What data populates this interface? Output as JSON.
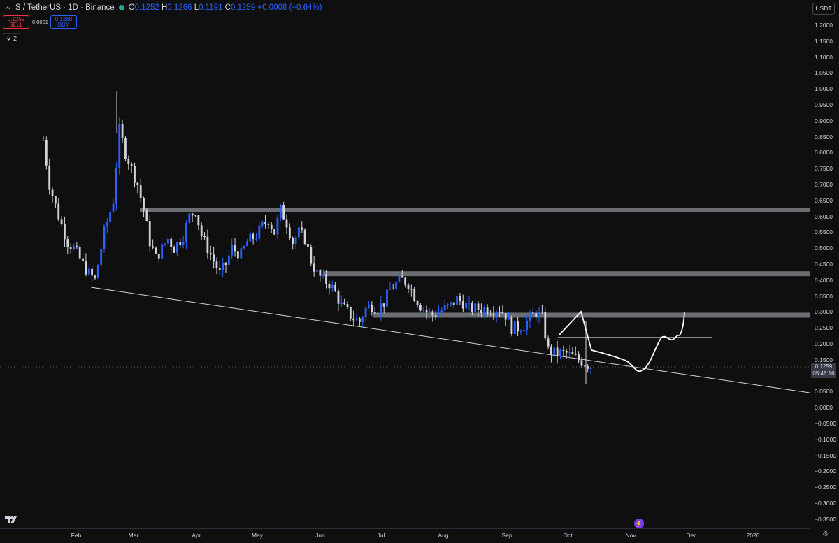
{
  "legend": {
    "symbol": "S / TetherUS · 1D · Binance",
    "collapse_icon": "chevron-up-icon",
    "o_key": "O",
    "o_val": "0.1252",
    "h_key": "H",
    "h_val": "0.1266",
    "l_key": "L",
    "l_val": "0.1191",
    "c_key": "C",
    "c_val": "0.1259",
    "change": "+0.0008 (+0.64%)"
  },
  "trade": {
    "sell_price": "0.1259",
    "sell_label": "SELL",
    "spread": "0.0001",
    "buy_price": "0.1260",
    "buy_label": "BUY"
  },
  "indicators": {
    "count": "2",
    "icon": "chevron-down-icon"
  },
  "currency": "USDT",
  "current_price": "0.1259",
  "countdown": "05:46:16",
  "colors": {
    "up": "#2962ff",
    "down": "#d1d4dc",
    "bg": "#0f0f0f",
    "sell": "#f23645",
    "buy": "#2962ff"
  },
  "chart_data": {
    "type": "candlestick",
    "price_ticks": [
      "1.2000",
      "1.1500",
      "1.1000",
      "1.0500",
      "1.0000",
      "0.9500",
      "0.9000",
      "0.8500",
      "0.8000",
      "0.7500",
      "0.7000",
      "0.6500",
      "0.6000",
      "0.5500",
      "0.5000",
      "0.4500",
      "0.4000",
      "0.3500",
      "0.3000",
      "0.2500",
      "0.2000",
      "0.1500",
      "0.0500",
      "0.0000",
      "−0.0500",
      "−0.1000",
      "−0.1500",
      "−0.2000",
      "−0.2500",
      "−0.3000",
      "−0.3500"
    ],
    "time_labels": [
      "Feb",
      "Mar",
      "Apr",
      "May",
      "Jun",
      "Jul",
      "Aug",
      "Sep",
      "Oct",
      "Nov",
      "Dec",
      "2026"
    ],
    "ylim": [
      -0.38,
      1.21
    ],
    "close_path": [
      [
        0,
        0.84
      ],
      [
        2,
        0.7
      ],
      [
        5,
        0.6
      ],
      [
        8,
        0.52
      ],
      [
        10,
        0.5
      ],
      [
        13,
        0.45
      ],
      [
        15,
        0.42
      ],
      [
        17,
        0.4
      ],
      [
        20,
        0.55
      ],
      [
        23,
        0.65
      ],
      [
        25,
        0.87
      ],
      [
        27,
        0.8
      ],
      [
        29,
        0.75
      ],
      [
        31,
        0.7
      ],
      [
        33,
        0.62
      ],
      [
        35,
        0.52
      ],
      [
        37,
        0.47
      ],
      [
        39,
        0.5
      ],
      [
        41,
        0.53
      ],
      [
        43,
        0.5
      ],
      [
        46,
        0.54
      ],
      [
        48,
        0.6
      ],
      [
        50,
        0.62
      ],
      [
        52,
        0.54
      ],
      [
        54,
        0.5
      ],
      [
        56,
        0.46
      ],
      [
        58,
        0.42
      ],
      [
        60,
        0.45
      ],
      [
        62,
        0.5
      ],
      [
        65,
        0.48
      ],
      [
        67,
        0.52
      ],
      [
        70,
        0.54
      ],
      [
        72,
        0.57
      ],
      [
        74,
        0.59
      ],
      [
        76,
        0.55
      ],
      [
        78,
        0.62
      ],
      [
        80,
        0.58
      ],
      [
        82,
        0.52
      ],
      [
        84,
        0.55
      ],
      [
        86,
        0.53
      ],
      [
        88,
        0.46
      ],
      [
        90,
        0.42
      ],
      [
        92,
        0.4
      ],
      [
        94,
        0.39
      ],
      [
        96,
        0.36
      ],
      [
        98,
        0.32
      ],
      [
        100,
        0.3
      ],
      [
        102,
        0.28
      ],
      [
        104,
        0.27
      ],
      [
        106,
        0.31
      ],
      [
        108,
        0.32
      ],
      [
        110,
        0.31
      ],
      [
        112,
        0.33
      ],
      [
        114,
        0.37
      ],
      [
        116,
        0.39
      ],
      [
        118,
        0.4
      ],
      [
        120,
        0.39
      ],
      [
        122,
        0.35
      ],
      [
        124,
        0.32
      ],
      [
        126,
        0.3
      ],
      [
        128,
        0.29
      ],
      [
        130,
        0.3
      ],
      [
        132,
        0.31
      ],
      [
        134,
        0.32
      ],
      [
        136,
        0.34
      ],
      [
        138,
        0.33
      ],
      [
        140,
        0.31
      ],
      [
        142,
        0.31
      ],
      [
        144,
        0.31
      ],
      [
        146,
        0.31
      ],
      [
        148,
        0.31
      ],
      [
        150,
        0.31
      ],
      [
        152,
        0.29
      ],
      [
        154,
        0.25
      ],
      [
        156,
        0.25
      ],
      [
        158,
        0.26
      ],
      [
        160,
        0.28
      ],
      [
        162,
        0.3
      ],
      [
        164,
        0.28
      ],
      [
        166,
        0.18
      ],
      [
        168,
        0.17
      ],
      [
        170,
        0.17
      ],
      [
        172,
        0.17
      ],
      [
        174,
        0.16
      ],
      [
        176,
        0.15
      ],
      [
        178,
        0.14
      ],
      [
        180,
        0.13
      ]
    ],
    "horizontal_zones": [
      0.62,
      0.42,
      0.29
    ],
    "small_line_level": 0.22
  }
}
